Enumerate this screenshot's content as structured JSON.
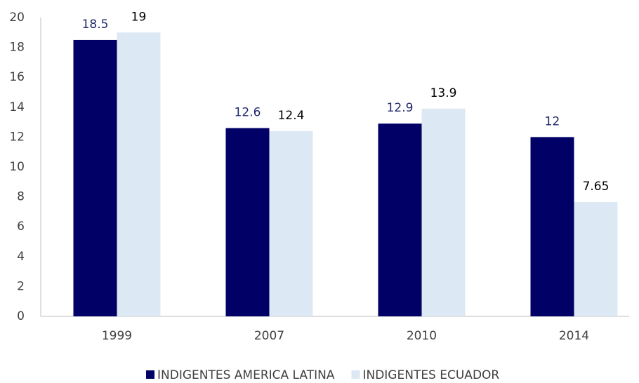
{
  "chart_data": {
    "type": "bar",
    "categories": [
      "1999",
      "2007",
      "2010",
      "2014"
    ],
    "series": [
      {
        "name": "INDIGENTES AMERICA LATINA",
        "color": "#000066",
        "label_color": "#1f2a6b",
        "values": [
          18.5,
          12.6,
          12.9,
          12
        ]
      },
      {
        "name": "INDIGENTES ECUADOR",
        "color": "#dde8f5",
        "label_color": "#000000",
        "values": [
          19,
          12.4,
          13.9,
          7.65
        ]
      }
    ],
    "ylim": [
      0,
      20
    ],
    "yticks": [
      0,
      2,
      4,
      6,
      8,
      10,
      12,
      14,
      16,
      18,
      20
    ],
    "grid": false,
    "legend": "bottom"
  }
}
